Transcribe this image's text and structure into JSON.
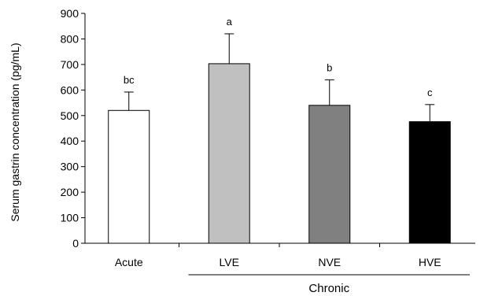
{
  "chart_data": {
    "type": "bar",
    "categories": [
      "Acute",
      "LVE",
      "NVE",
      "HVE"
    ],
    "values": [
      520,
      703,
      540,
      476
    ],
    "errors": [
      72,
      117,
      100,
      67
    ],
    "letters": [
      "bc",
      "a",
      "b",
      "c"
    ],
    "colors": [
      "#ffffff",
      "#c0c0c0",
      "#808080",
      "#000000"
    ],
    "ylabel": "Serum gastrin concentration (pg/mL)",
    "ylim": [
      0,
      900
    ],
    "yticks": [
      0,
      100,
      200,
      300,
      400,
      500,
      600,
      700,
      800,
      900
    ],
    "groups": [
      {
        "label": "Chronic",
        "start": 1,
        "end": 3
      }
    ],
    "grid": false
  }
}
